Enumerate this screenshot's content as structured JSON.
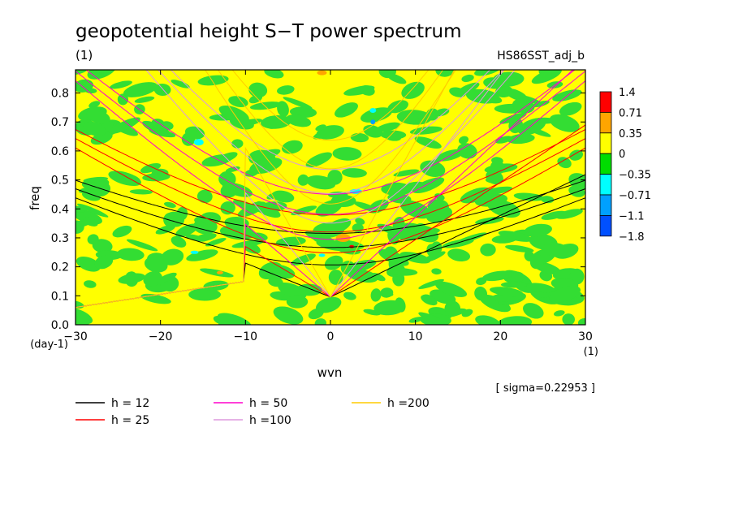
{
  "chart_data": {
    "type": "heatmap",
    "title": "geopotential height S−T power spectrum",
    "subtitle_left": "(1)",
    "subtitle_right": "HS86SST_adj_b",
    "xlabel": "wvn",
    "ylabel": "freq",
    "x_unit": "(1)",
    "y_unit": "(day-1)",
    "xlim": [
      -30,
      30
    ],
    "ylim": [
      0,
      0.88
    ],
    "xticks": [
      -30,
      -20,
      -10,
      0,
      10,
      20,
      30
    ],
    "yticks": [
      0.0,
      0.1,
      0.2,
      0.3,
      0.4,
      0.5,
      0.6,
      0.7,
      0.8
    ],
    "sigma_note": "[ sigma=0.22953 ]",
    "colorbar": {
      "levels": [
        "1.4",
        "0.71",
        "0.35",
        "0",
        "−0.35",
        "−0.71",
        "−1.1",
        "−1.8"
      ],
      "colors": [
        "#ff0000",
        "#ffa500",
        "#ffff00",
        "#00dd00",
        "#00ffff",
        "#00a0ff",
        "#0050ff"
      ]
    },
    "field_colors": {
      "positive": "#ffff00",
      "negative": "#33dd33"
    },
    "dispersion_curves": [
      {
        "label": "h = 12",
        "color": "#000000",
        "depth": 12
      },
      {
        "label": "h = 25",
        "color": "#ff0000",
        "depth": 25
      },
      {
        "label": "h = 50",
        "color": "#ff00cc",
        "depth": 50
      },
      {
        "label": "h =100",
        "color": "#dd99dd",
        "depth": 100
      },
      {
        "label": "h =200",
        "color": "#ffcc00",
        "depth": 200
      }
    ]
  }
}
